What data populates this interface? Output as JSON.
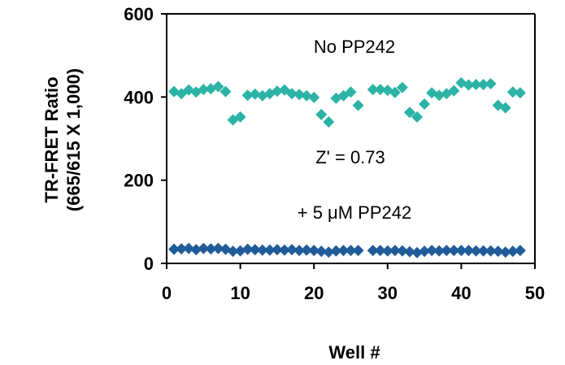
{
  "chart_data": {
    "type": "scatter",
    "title": "",
    "xlabel": "Well #",
    "ylabel_line1": "TR-FRET Ratio",
    "ylabel_line2": "(665/615 X 1,000)",
    "xlim": [
      0,
      50
    ],
    "ylim": [
      0,
      600
    ],
    "x_ticks": [
      "0",
      "10",
      "20",
      "30",
      "40",
      "50"
    ],
    "y_ticks": [
      "0",
      "200",
      "400",
      "600"
    ],
    "grid": false,
    "legend": "none",
    "annotations": {
      "top": "No PP242",
      "middle": "Z' = 0.73",
      "bottom": "+ 5 μM PP242"
    },
    "series": [
      {
        "color": "#2BB3A5",
        "x": [
          1,
          2,
          3,
          4,
          5,
          6,
          7,
          8,
          9,
          10,
          11,
          12,
          13,
          14,
          15,
          16,
          17,
          18,
          19,
          20,
          21,
          22,
          23,
          24,
          25,
          26,
          28,
          29,
          30,
          31,
          32,
          33,
          34,
          35,
          36,
          37,
          38,
          39,
          40,
          41,
          42,
          43,
          44,
          45,
          46,
          47,
          48
        ],
        "y": [
          413,
          408,
          417,
          412,
          418,
          420,
          425,
          413,
          345,
          352,
          404,
          407,
          403,
          408,
          414,
          417,
          408,
          406,
          403,
          399,
          358,
          340,
          397,
          403,
          412,
          380,
          418,
          418,
          416,
          411,
          423,
          363,
          352,
          383,
          410,
          404,
          408,
          415,
          434,
          429,
          430,
          430,
          432,
          380,
          374,
          412,
          410
        ]
      },
      {
        "color": "#1F5C99",
        "x": [
          1,
          2,
          3,
          4,
          5,
          6,
          7,
          8,
          9,
          10,
          11,
          12,
          13,
          14,
          15,
          16,
          17,
          18,
          19,
          20,
          21,
          22,
          23,
          24,
          25,
          26,
          28,
          29,
          30,
          31,
          32,
          33,
          34,
          35,
          36,
          37,
          38,
          39,
          40,
          41,
          42,
          43,
          44,
          45,
          46,
          47,
          48
        ],
        "y": [
          34,
          35,
          36,
          33,
          36,
          35,
          36,
          34,
          29,
          30,
          34,
          33,
          32,
          32,
          33,
          32,
          33,
          31,
          32,
          31,
          29,
          27,
          30,
          31,
          31,
          31,
          31,
          31,
          30,
          31,
          30,
          28,
          26,
          29,
          31,
          30,
          31,
          31,
          31,
          31,
          30,
          30,
          30,
          29,
          27,
          29,
          31
        ]
      }
    ]
  }
}
